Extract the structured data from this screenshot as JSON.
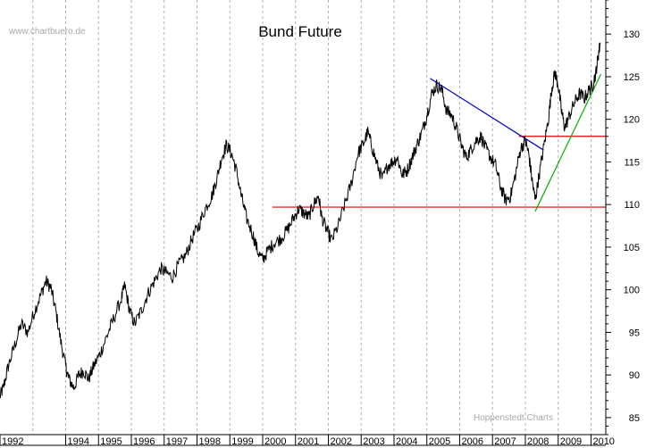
{
  "chart_data": {
    "type": "line",
    "title": "Bund Future",
    "watermark_top": "www.chartbuero.de",
    "watermark_bottom": "Hoppenstedt Charts",
    "y_axis_side": "right",
    "ylim": [
      83,
      134
    ],
    "yticks": [
      85,
      90,
      95,
      100,
      105,
      110,
      115,
      120,
      125,
      130
    ],
    "xlim": [
      1992.0,
      2010.45
    ],
    "xtick_labels": [
      "1992",
      "1994",
      "1995",
      "1996",
      "1997",
      "1998",
      "1999",
      "2000",
      "2001",
      "2002",
      "2003",
      "2004",
      "2005",
      "2006",
      "2007",
      "2008",
      "2009",
      "2010"
    ],
    "grid": "vertical dotted",
    "series": [
      {
        "color": "#000000",
        "points": [
          [
            1992.0,
            87.5
          ],
          [
            1992.1,
            88.5
          ],
          [
            1992.25,
            91.0
          ],
          [
            1992.45,
            93.5
          ],
          [
            1992.65,
            96.0
          ],
          [
            1992.85,
            95.0
          ],
          [
            1993.05,
            97.5
          ],
          [
            1993.25,
            99.5
          ],
          [
            1993.4,
            101.0
          ],
          [
            1993.55,
            100.2
          ],
          [
            1993.7,
            97.5
          ],
          [
            1993.85,
            94.0
          ],
          [
            1994.0,
            91.0
          ],
          [
            1994.1,
            89.5
          ],
          [
            1994.25,
            88.5
          ],
          [
            1994.4,
            90.0
          ],
          [
            1994.55,
            90.5
          ],
          [
            1994.7,
            89.5
          ],
          [
            1994.85,
            91.0
          ],
          [
            1995.05,
            92.5
          ],
          [
            1995.25,
            94.5
          ],
          [
            1995.45,
            96.5
          ],
          [
            1995.7,
            99.0
          ],
          [
            1995.8,
            100.5
          ],
          [
            1995.95,
            97.5
          ],
          [
            1996.1,
            96.0
          ],
          [
            1996.3,
            97.5
          ],
          [
            1996.5,
            99.5
          ],
          [
            1996.7,
            101.0
          ],
          [
            1996.9,
            102.5
          ],
          [
            1997.05,
            102.0
          ],
          [
            1997.25,
            101.5
          ],
          [
            1997.45,
            103.0
          ],
          [
            1997.65,
            104.0
          ],
          [
            1997.85,
            106.0
          ],
          [
            1998.05,
            107.5
          ],
          [
            1998.25,
            109.5
          ],
          [
            1998.45,
            111.0
          ],
          [
            1998.6,
            113.0
          ],
          [
            1998.75,
            115.5
          ],
          [
            1998.9,
            117.0
          ],
          [
            1999.05,
            116.0
          ],
          [
            1999.2,
            114.0
          ],
          [
            1999.35,
            111.0
          ],
          [
            1999.5,
            108.5
          ],
          [
            1999.7,
            106.5
          ],
          [
            1999.85,
            104.5
          ],
          [
            2000.0,
            103.5
          ],
          [
            2000.15,
            104.5
          ],
          [
            2000.35,
            105.5
          ],
          [
            2000.55,
            106.0
          ],
          [
            2000.75,
            107.0
          ],
          [
            2000.95,
            108.5
          ],
          [
            2001.1,
            109.5
          ],
          [
            2001.25,
            109.0
          ],
          [
            2001.4,
            108.5
          ],
          [
            2001.55,
            110.0
          ],
          [
            2001.7,
            111.0
          ],
          [
            2001.8,
            108.5
          ],
          [
            2001.95,
            107.0
          ],
          [
            2002.1,
            105.8
          ],
          [
            2002.3,
            107.5
          ],
          [
            2002.5,
            110.0
          ],
          [
            2002.7,
            112.5
          ],
          [
            2002.9,
            116.0
          ],
          [
            2003.05,
            117.0
          ],
          [
            2003.2,
            118.5
          ],
          [
            2003.35,
            116.5
          ],
          [
            2003.5,
            114.5
          ],
          [
            2003.65,
            113.0
          ],
          [
            2003.8,
            114.5
          ],
          [
            2003.95,
            115.0
          ],
          [
            2004.1,
            115.5
          ],
          [
            2004.25,
            113.5
          ],
          [
            2004.4,
            114.0
          ],
          [
            2004.55,
            115.5
          ],
          [
            2004.7,
            117.0
          ],
          [
            2004.85,
            118.5
          ],
          [
            2005.0,
            120.5
          ],
          [
            2005.15,
            123.0
          ],
          [
            2005.3,
            124.0
          ],
          [
            2005.45,
            123.5
          ],
          [
            2005.6,
            121.0
          ],
          [
            2005.75,
            120.5
          ],
          [
            2005.9,
            119.0
          ],
          [
            2006.05,
            117.0
          ],
          [
            2006.2,
            115.5
          ],
          [
            2006.35,
            116.5
          ],
          [
            2006.5,
            117.5
          ],
          [
            2006.65,
            118.0
          ],
          [
            2006.8,
            116.5
          ],
          [
            2006.95,
            115.5
          ],
          [
            2007.1,
            114.5
          ],
          [
            2007.25,
            112.0
          ],
          [
            2007.4,
            110.5
          ],
          [
            2007.55,
            111.0
          ],
          [
            2007.7,
            113.5
          ],
          [
            2007.85,
            116.5
          ],
          [
            2008.0,
            117.5
          ],
          [
            2008.1,
            116.0
          ],
          [
            2008.2,
            113.0
          ],
          [
            2008.3,
            110.5
          ],
          [
            2008.4,
            113.0
          ],
          [
            2008.55,
            116.5
          ],
          [
            2008.7,
            120.0
          ],
          [
            2008.8,
            123.5
          ],
          [
            2008.9,
            125.5
          ],
          [
            2009.0,
            124.0
          ],
          [
            2009.1,
            121.0
          ],
          [
            2009.2,
            119.0
          ],
          [
            2009.35,
            120.5
          ],
          [
            2009.5,
            122.0
          ],
          [
            2009.65,
            123.0
          ],
          [
            2009.8,
            122.5
          ],
          [
            2009.95,
            123.5
          ],
          [
            2010.05,
            124.0
          ],
          [
            2010.15,
            125.5
          ],
          [
            2010.22,
            127.5
          ],
          [
            2010.28,
            129.0
          ]
        ]
      }
    ],
    "annotations": [
      {
        "kind": "horizontal",
        "color": "#e00000",
        "y": 109.7,
        "x": [
          2000.3,
          2010.45
        ]
      },
      {
        "kind": "horizontal",
        "color": "#e00000",
        "y": 118.0,
        "x": [
          2007.8,
          2010.45
        ]
      },
      {
        "kind": "trendline",
        "color": "#0000cc",
        "from": [
          2005.1,
          124.8
        ],
        "to": [
          2008.55,
          116.4
        ]
      },
      {
        "kind": "trendline",
        "color": "#00b000",
        "from": [
          2008.3,
          109.2
        ],
        "to": [
          2010.3,
          125.3
        ]
      }
    ]
  }
}
